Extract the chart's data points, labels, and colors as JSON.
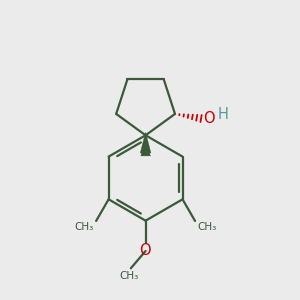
{
  "background_color": "#ebebeb",
  "bond_color": "#3a5a3a",
  "O_color": "#cc0000",
  "H_color": "#5a9a9a",
  "figsize": [
    3.0,
    3.0
  ],
  "dpi": 100,
  "xlim": [
    0,
    10
  ],
  "ylim": [
    0,
    10
  ]
}
